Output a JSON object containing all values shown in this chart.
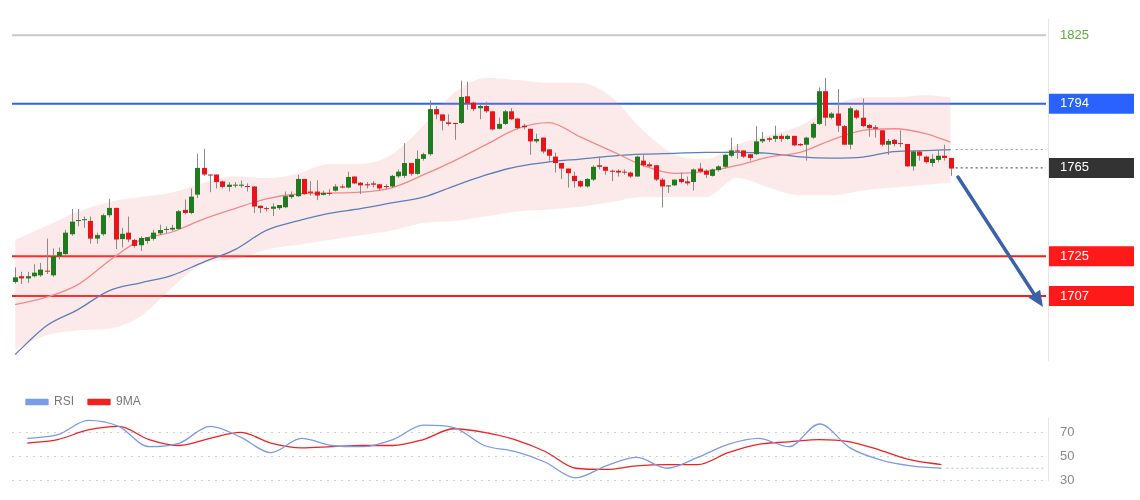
{
  "chart_data": [
    {
      "type": "candlestick",
      "categories": [
        null,
        null,
        null,
        null,
        null,
        null,
        null,
        null,
        null,
        null,
        null,
        null,
        null,
        null,
        null,
        null,
        null,
        null,
        null,
        null,
        null,
        null,
        null,
        null,
        null,
        null,
        null,
        null,
        null,
        null,
        null,
        null,
        null,
        null,
        null,
        null,
        null,
        null,
        null,
        null,
        null,
        null,
        null,
        null,
        null,
        null,
        null,
        null,
        null,
        null,
        null,
        null,
        null,
        null,
        null,
        null,
        null,
        null,
        null,
        null,
        null,
        null,
        null,
        null,
        null,
        null,
        null,
        null,
        null,
        null,
        null,
        null,
        null,
        null,
        null,
        null,
        null,
        null,
        null,
        null,
        null,
        null,
        null,
        null,
        null,
        null,
        null,
        null,
        null,
        null,
        null,
        null,
        null,
        null,
        null,
        null,
        null,
        null,
        null,
        null,
        null,
        null,
        null,
        null,
        null,
        null,
        null,
        null,
        null,
        null,
        null,
        null,
        null,
        null,
        null,
        null,
        null,
        null,
        null,
        null,
        null,
        null,
        null,
        null,
        null,
        null,
        null,
        null,
        null,
        null,
        null,
        null,
        null,
        null,
        null,
        null,
        null,
        null,
        null,
        null,
        null,
        null,
        null,
        null,
        null,
        null,
        null,
        null,
        null,
        null,
        null,
        null,
        null,
        null,
        null,
        null,
        null,
        null,
        null,
        null,
        null,
        null,
        null,
        null,
        null
      ],
      "ohlc": [
        [
          1713.4,
          1720,
          1712.7,
          1715.5
        ],
        [
          1716,
          1718,
          1712.5,
          1715
        ],
        [
          1715,
          1718,
          1713,
          1716
        ],
        [
          1716,
          1721.4,
          1715.4,
          1717.6
        ],
        [
          1716.4,
          1722,
          1715.7,
          1719
        ],
        [
          1718.5,
          1733,
          1717,
          1718.3
        ],
        [
          1716.4,
          1728.6,
          1715.7,
          1725
        ],
        [
          1725,
          1729,
          1723.6,
          1727
        ],
        [
          1726,
          1737,
          1725.7,
          1735.7
        ],
        [
          1735,
          1746.4,
          1734.3,
          1740.7
        ],
        [
          1741,
          1746.4,
          1738.6,
          1741.4
        ],
        [
          1741.5,
          1743,
          1737.9,
          1741.8
        ],
        [
          1741,
          1743,
          1730.7,
          1733
        ],
        [
          1733,
          1735.7,
          1730.7,
          1734.6
        ],
        [
          1735,
          1744.3,
          1734.3,
          1743.6
        ],
        [
          1743.6,
          1751,
          1742.6,
          1746.9
        ],
        [
          1746.9,
          1747,
          1728.3,
          1732.6
        ],
        [
          1732.8,
          1737.9,
          1729,
          1735.2
        ],
        [
          1735.7,
          1743,
          1731.4,
          1732.6
        ],
        [
          1732.4,
          1732.9,
          1728.9,
          1729.7
        ],
        [
          1730,
          1734,
          1727.4,
          1733.3
        ],
        [
          1731.9,
          1733.6,
          1730.7,
          1733.6
        ],
        [
          1732.9,
          1737,
          1732.1,
          1735.7
        ],
        [
          1735.4,
          1739.3,
          1734.6,
          1736.9
        ],
        [
          1737.1,
          1738.6,
          1735.4,
          1737.4
        ],
        [
          1737.1,
          1739.3,
          1736.4,
          1737.9
        ],
        [
          1737.4,
          1746,
          1737.1,
          1745.4
        ],
        [
          1746,
          1750.7,
          1744,
          1744.6
        ],
        [
          1744.6,
          1755.7,
          1744,
          1752
        ],
        [
          1752.9,
          1771.4,
          1751.4,
          1765
        ],
        [
          1765,
          1773.6,
          1761.4,
          1762
        ],
        [
          1762,
          1762,
          1754,
          1761.7
        ],
        [
          1762,
          1762,
          1755.7,
          1758.6
        ],
        [
          1758.9,
          1759.3,
          1755.7,
          1756.4
        ],
        [
          1756.4,
          1758.6,
          1754.3,
          1757.4
        ],
        [
          1757.1,
          1758.6,
          1756,
          1757.4
        ],
        [
          1756.9,
          1759.3,
          1756,
          1757.4
        ],
        [
          1756.8,
          1758,
          1754.3,
          1756.6
        ],
        [
          1756.6,
          1756.6,
          1744.6,
          1747.5
        ],
        [
          1747.9,
          1747.9,
          1744.6,
          1746.8
        ],
        [
          1746.8,
          1747.5,
          1745.3,
          1746.5
        ],
        [
          1746.5,
          1749,
          1743.2,
          1747.5
        ],
        [
          1746.8,
          1748.2,
          1746,
          1748.2
        ],
        [
          1747.2,
          1754.3,
          1746.8,
          1752.2
        ],
        [
          1751.8,
          1754.3,
          1751,
          1752.8
        ],
        [
          1752.2,
          1761.9,
          1751.8,
          1760
        ],
        [
          1760,
          1760,
          1752.8,
          1753.2
        ],
        [
          1754.3,
          1759,
          1752.5,
          1753.7
        ],
        [
          1754.3,
          1759.4,
          1750.4,
          1752.5
        ],
        [
          1752.8,
          1754.7,
          1752.5,
          1753.7
        ],
        [
          1753.7,
          1755.4,
          1752.5,
          1753.3
        ],
        [
          1754.7,
          1757.6,
          1754.3,
          1756.6
        ],
        [
          1756.6,
          1757.6,
          1755.7,
          1756.1
        ],
        [
          1756.1,
          1763.3,
          1755.7,
          1760.9
        ],
        [
          1761.1,
          1761.1,
          1757.6,
          1758
        ],
        [
          1758.3,
          1758.6,
          1753.2,
          1757.1
        ],
        [
          1757.6,
          1758.6,
          1755.7,
          1757.1
        ],
        [
          1758,
          1759,
          1756.1,
          1757.4
        ],
        [
          1757.6,
          1757.6,
          1754.7,
          1755.7
        ],
        [
          1756.8,
          1757.6,
          1755.4,
          1756.6
        ],
        [
          1756.6,
          1761.9,
          1756.1,
          1761.4
        ],
        [
          1761.2,
          1764.3,
          1760.4,
          1763.3
        ],
        [
          1761.4,
          1776.2,
          1760.4,
          1767.2
        ],
        [
          1767.2,
          1767.2,
          1761.4,
          1762.3
        ],
        [
          1762.3,
          1772.9,
          1761.9,
          1769.1
        ],
        [
          1769.1,
          1771.9,
          1768.3,
          1771.2
        ],
        [
          1771.2,
          1795.6,
          1770.5,
          1791.6
        ],
        [
          1791.6,
          1793,
          1787,
          1789.2
        ],
        [
          1789.2,
          1789.2,
          1782,
          1786.3
        ],
        [
          1785.6,
          1789.2,
          1784.1,
          1784.9
        ],
        [
          1785.3,
          1785.3,
          1777.7,
          1784.9
        ],
        [
          1785.3,
          1804.5,
          1784.9,
          1797.1
        ],
        [
          1797.4,
          1804,
          1791.3,
          1794.2
        ],
        [
          1794.5,
          1794.9,
          1790.6,
          1791.6
        ],
        [
          1792,
          1793.5,
          1787,
          1793
        ],
        [
          1793,
          1794.9,
          1789.9,
          1790.6
        ],
        [
          1790.6,
          1790.6,
          1782,
          1782.4
        ],
        [
          1782.7,
          1787.7,
          1782.4,
          1784.9
        ],
        [
          1784.9,
          1791.3,
          1784.4,
          1790.6
        ],
        [
          1790.6,
          1792,
          1786.7,
          1787
        ],
        [
          1787.3,
          1787.7,
          1782.4,
          1783
        ],
        [
          1784.1,
          1784.9,
          1782.4,
          1783.4
        ],
        [
          1782.7,
          1782.7,
          1770.9,
          1777
        ],
        [
          1777,
          1780.5,
          1776.2,
          1778.1
        ],
        [
          1778.7,
          1778.7,
          1771.5,
          1772.4
        ],
        [
          1773.4,
          1773.4,
          1768.3,
          1770.5
        ],
        [
          1770.1,
          1771.9,
          1762.9,
          1767.2
        ],
        [
          1767.2,
          1767.2,
          1760,
          1764.7
        ],
        [
          1764.7,
          1764.7,
          1756.1,
          1762.6
        ],
        [
          1761.4,
          1763.3,
          1756.1,
          1759
        ],
        [
          1759,
          1759.4,
          1756.1,
          1756.6
        ],
        [
          1756.6,
          1760.4,
          1756.1,
          1760
        ],
        [
          1759.7,
          1766.2,
          1759,
          1765.5
        ],
        [
          1766.2,
          1770.1,
          1764.3,
          1765.5
        ],
        [
          1765.5,
          1765.5,
          1761.9,
          1763.7
        ],
        [
          1763.7,
          1764.3,
          1759,
          1763.3
        ],
        [
          1763.7,
          1764.3,
          1761.1,
          1762.9
        ],
        [
          1763.3,
          1764.3,
          1761.9,
          1762.9
        ],
        [
          1762.9,
          1763.3,
          1760.4,
          1761.1
        ],
        [
          1761.1,
          1770.5,
          1760.9,
          1770.1
        ],
        [
          1768.3,
          1770.9,
          1765.5,
          1766.2
        ],
        [
          1766.6,
          1767.6,
          1765.5,
          1765.7
        ],
        [
          1766.2,
          1766.2,
          1759,
          1759.7
        ],
        [
          1759.7,
          1760.4,
          1747.1,
          1756.6
        ],
        [
          1756.6,
          1757.1,
          1753.7,
          1757.1
        ],
        [
          1757.1,
          1759.7,
          1756.8,
          1759.7
        ],
        [
          1760,
          1762.9,
          1758,
          1758.6
        ],
        [
          1758.9,
          1761.1,
          1757.1,
          1758
        ],
        [
          1758.6,
          1764.7,
          1754.7,
          1764.3
        ],
        [
          1764.7,
          1767.2,
          1762.6,
          1763.3
        ],
        [
          1763.7,
          1764.3,
          1760.4,
          1761.9
        ],
        [
          1761.4,
          1764.7,
          1761.1,
          1764.3
        ],
        [
          1764,
          1766.2,
          1763.3,
          1765.7
        ],
        [
          1765.5,
          1771.2,
          1764.7,
          1770.9
        ],
        [
          1770.5,
          1778.7,
          1769.8,
          1772.9
        ],
        [
          1772.9,
          1775.8,
          1769.1,
          1772.4
        ],
        [
          1772.9,
          1772.9,
          1769.5,
          1770.1
        ],
        [
          1771.2,
          1771.2,
          1768.3,
          1769.5
        ],
        [
          1771.2,
          1783.9,
          1770.9,
          1777
        ],
        [
          1777,
          1781.3,
          1776.2,
          1778.1
        ],
        [
          1778.4,
          1779.1,
          1776.7,
          1777.7
        ],
        [
          1778.1,
          1784.1,
          1776.7,
          1779.5
        ],
        [
          1779.5,
          1780.5,
          1776.7,
          1778.1
        ],
        [
          1778.1,
          1780.1,
          1777.7,
          1779.5
        ],
        [
          1779.5,
          1779.5,
          1774.8,
          1775.2
        ],
        [
          1775.8,
          1776.2,
          1774.8,
          1775.2
        ],
        [
          1775.5,
          1779.1,
          1768.3,
          1778.7
        ],
        [
          1778.7,
          1785.6,
          1778.1,
          1784.9
        ],
        [
          1784.9,
          1801.4,
          1784.4,
          1799.7
        ],
        [
          1799.7,
          1805.7,
          1783.9,
          1787.7
        ],
        [
          1787.7,
          1790.2,
          1787,
          1789.6
        ],
        [
          1789.6,
          1800.7,
          1781.3,
          1784.1
        ],
        [
          1783.9,
          1784.4,
          1775.2,
          1775.5
        ],
        [
          1775.5,
          1792.8,
          1773.4,
          1792
        ],
        [
          1791,
          1791.6,
          1787,
          1787.7
        ],
        [
          1787.7,
          1796.4,
          1783.4,
          1783.9
        ],
        [
          1784.4,
          1784.9,
          1779.1,
          1783
        ],
        [
          1783.4,
          1784.4,
          1778.7,
          1782.7
        ],
        [
          1782,
          1782,
          1774.8,
          1775.5
        ],
        [
          1775.5,
          1778.1,
          1770.9,
          1777.2
        ],
        [
          1777.7,
          1778.1,
          1774.8,
          1775.8
        ],
        [
          1776.2,
          1782,
          1774.4,
          1775.8
        ],
        [
          1775.8,
          1775.8,
          1765.5,
          1765.7
        ],
        [
          1765.7,
          1772.9,
          1763.7,
          1772.4
        ],
        [
          1772.4,
          1772.9,
          1768.3,
          1770.5
        ],
        [
          1770.1,
          1770.5,
          1766.9,
          1767.6
        ],
        [
          1767.2,
          1771.2,
          1765.5,
          1769.1
        ],
        [
          1768.6,
          1772.9,
          1767.6,
          1770.5
        ],
        [
          1770.5,
          1775.5,
          1768.3,
          1769.5
        ],
        [
          1769.5,
          1769.5,
          1761.4,
          1764.7
        ],
        null,
        null,
        null,
        null,
        null,
        null,
        null,
        null,
        null,
        null,
        null,
        null,
        null,
        null,
        null
      ],
      "colors": [
        "#1e7b1e",
        "#e8141a",
        "#1e7b1e",
        "#1e7b1e",
        "#1e7b1e",
        "#e8141a",
        "#1e7b1e",
        "#1e7b1e",
        "#1e7b1e",
        "#1e7b1e",
        "#1e7b1e",
        "#1e7b1e",
        "#e8141a",
        "#1e7b1e",
        "#1e7b1e",
        "#1e7b1e",
        "#e8141a",
        "#1e7b1e",
        "#e8141a",
        "#e8141a",
        "#1e7b1e",
        "#1e7b1e",
        "#1e7b1e",
        "#1e7b1e",
        "#1e7b1e",
        "#1e7b1e",
        "#1e7b1e",
        "#e8141a",
        "#1e7b1e",
        "#1e7b1e",
        "#e8141a",
        "#e8141a",
        "#e8141a",
        "#e8141a",
        "#1e7b1e",
        "#1e7b1e",
        "#1e7b1e",
        "#e8141a",
        "#e8141a",
        "#e8141a",
        "#e8141a",
        "#1e7b1e",
        "#1e7b1e",
        "#1e7b1e",
        "#1e7b1e",
        "#1e7b1e",
        "#e8141a",
        "#e8141a",
        "#e8141a",
        "#1e7b1e",
        "#e8141a",
        "#1e7b1e",
        "#e8141a",
        "#1e7b1e",
        "#e8141a",
        "#e8141a",
        "#e8141a",
        "#e8141a",
        "#e8141a",
        "#e8141a",
        "#1e7b1e",
        "#1e7b1e",
        "#1e7b1e",
        "#e8141a",
        "#1e7b1e",
        "#1e7b1e",
        "#1e7b1e",
        "#e8141a",
        "#e8141a",
        "#e8141a",
        "#e8141a",
        "#1e7b1e",
        "#e8141a",
        "#e8141a",
        "#1e7b1e",
        "#e8141a",
        "#e8141a",
        "#1e7b1e",
        "#1e7b1e",
        "#e8141a",
        "#e8141a",
        "#e8141a",
        "#e8141a",
        "#1e7b1e",
        "#e8141a",
        "#e8141a",
        "#e8141a",
        "#e8141a",
        "#e8141a",
        "#e8141a",
        "#e8141a",
        "#1e7b1e",
        "#1e7b1e",
        "#e8141a",
        "#e8141a",
        "#e8141a",
        "#e8141a",
        "#e8141a",
        "#e8141a",
        "#1e7b1e",
        "#e8141a",
        "#e8141a",
        "#e8141a",
        "#e8141a",
        "#1e7b1e",
        "#1e7b1e",
        "#e8141a",
        "#e8141a",
        "#1e7b1e",
        "#e8141a",
        "#e8141a",
        "#1e7b1e",
        "#1e7b1e",
        "#1e7b1e",
        "#1e7b1e",
        "#e8141a",
        "#e8141a",
        "#e8141a",
        "#1e7b1e",
        "#1e7b1e",
        "#e8141a",
        "#1e7b1e",
        "#e8141a",
        "#1e7b1e",
        "#e8141a",
        "#e8141a",
        "#1e7b1e",
        "#1e7b1e",
        "#1e7b1e",
        "#e8141a",
        "#1e7b1e",
        "#e8141a",
        "#e8141a",
        "#1e7b1e",
        "#e8141a",
        "#e8141a",
        "#e8141a",
        "#e8141a",
        "#e8141a",
        "#1e7b1e",
        "#e8141a",
        "#e8141a",
        "#e8141a",
        "#1e7b1e",
        "#e8141a",
        "#e8141a",
        "#1e7b1e",
        "#1e7b1e",
        "#e8141a",
        "#e8141a",
        null,
        null,
        null,
        null,
        null,
        null,
        null,
        null,
        null,
        null,
        null,
        null,
        null,
        null,
        null
      ],
      "series": [
        {
          "type": "line",
          "color": "#f08a8a",
          "values": [
            1703.1,
            null,
            null,
            null,
            null,
            1706.5,
            null,
            null,
            null,
            null,
            1712.2,
            null,
            null,
            null,
            null,
            1723,
            null,
            null,
            null,
            null,
            1732.4,
            null,
            null,
            null,
            null,
            1736,
            null,
            null,
            null,
            null,
            1741.8,
            null,
            null,
            null,
            null,
            1746.6,
            null,
            null,
            null,
            null,
            1751,
            null,
            null,
            null,
            null,
            1753.2,
            null,
            null,
            null,
            null,
            1753.6,
            null,
            null,
            null,
            null,
            1754,
            null,
            null,
            null,
            null,
            1756,
            null,
            null,
            null,
            null,
            1761.8,
            null,
            null,
            null,
            null,
            1768.3,
            null,
            null,
            null,
            null,
            1775.5,
            null,
            null,
            null,
            null,
            1782.8,
            null,
            null,
            null,
            null,
            1785.5,
            null,
            null,
            null,
            null,
            1779,
            null,
            null,
            null,
            null,
            1772.6,
            null,
            null,
            null,
            null,
            1766.1,
            null,
            null,
            null,
            null,
            1762.5,
            null,
            null,
            null,
            null,
            1763.4,
            null,
            null,
            null,
            null,
            1766.1,
            null,
            null,
            null,
            null,
            1769.9,
            null,
            null,
            null,
            null,
            1772,
            null,
            null,
            null,
            null,
            1777.6,
            null,
            null,
            null,
            null,
            1782,
            null,
            null,
            null,
            null,
            1782.7,
            null,
            null,
            null,
            null,
            1780.5,
            null,
            null,
            null,
            1776.6,
            null,
            null,
            null,
            null,
            null,
            null,
            null,
            null,
            null,
            null,
            null,
            null,
            null,
            null,
            null
          ],
          "upper": [
            1732.4,
            null,
            null,
            null,
            null,
            1738.8,
            null,
            null,
            null,
            null,
            1745.3,
            null,
            null,
            null,
            null,
            1749.6,
            null,
            null,
            null,
            null,
            1751.8,
            null,
            null,
            null,
            null,
            1753.9,
            null,
            null,
            null,
            null,
            1758.2,
            null,
            null,
            null,
            null,
            1761.2,
            null,
            null,
            null,
            null,
            1760.4,
            null,
            null,
            null,
            null,
            1762.5,
            null,
            null,
            null,
            null,
            1766.8,
            null,
            null,
            null,
            null,
            1766.8,
            null,
            null,
            null,
            null,
            1771.2,
            null,
            null,
            null,
            null,
            1784.1,
            null,
            null,
            null,
            null,
            1799.2,
            null,
            null,
            null,
            null,
            1805.7,
            null,
            null,
            null,
            null,
            1804.8,
            null,
            null,
            null,
            null,
            1803.5,
            null,
            null,
            null,
            null,
            1803.5,
            null,
            null,
            null,
            null,
            1797,
            null,
            null,
            null,
            null,
            1781.9,
            null,
            null,
            null,
            null,
            1771.2,
            null,
            null,
            null,
            null,
            1769,
            null,
            null,
            null,
            null,
            1775.5,
            null,
            null,
            null,
            null,
            1779.8,
            null,
            null,
            null,
            null,
            1784.1,
            null,
            null,
            null,
            null,
            1792.7,
            null,
            null,
            null,
            null,
            1797,
            null,
            null,
            null,
            null,
            1797,
            null,
            null,
            null,
            null,
            1797.9,
            null,
            null,
            null,
            1797,
            null,
            null,
            null,
            null,
            null,
            null,
            null,
            null,
            null,
            null,
            null,
            null,
            null,
            null,
            null
          ],
          "lower": [
            1682.8,
            null,
            null,
            null,
            null,
            1689.3,
            null,
            null,
            null,
            null,
            1691.4,
            null,
            null,
            null,
            null,
            1692.3,
            null,
            null,
            null,
            null,
            1697.9,
            null,
            null,
            null,
            null,
            1710.8,
            null,
            null,
            null,
            null,
            1721.6,
            null,
            null,
            null,
            null,
            1723.7,
            null,
            null,
            null,
            null,
            1728,
            null,
            null,
            null,
            null,
            1730.2,
            null,
            null,
            null,
            null,
            1732.4,
            null,
            null,
            null,
            null,
            1734.5,
            null,
            null,
            null,
            null,
            1736.7,
            null,
            null,
            null,
            null,
            1740.1,
            null,
            null,
            null,
            null,
            1741,
            null,
            null,
            null,
            null,
            1743.1,
            null,
            null,
            null,
            null,
            1745.3,
            null,
            null,
            null,
            null,
            1746.2,
            null,
            null,
            null,
            null,
            1747.4,
            null,
            null,
            null,
            null,
            1749.6,
            null,
            null,
            null,
            null,
            1751.8,
            null,
            null,
            null,
            null,
            1751.8,
            null,
            null,
            null,
            null,
            1751.8,
            null,
            null,
            null,
            null,
            1760.4,
            null,
            null,
            null,
            null,
            1756.1,
            null,
            null,
            null,
            null,
            1752.6,
            null,
            null,
            null,
            null,
            1752.6,
            null,
            null,
            null,
            null,
            1754.8,
            null,
            null,
            null,
            null,
            1756.1,
            null,
            null,
            null,
            null,
            1757.4,
            null,
            null,
            null,
            1758.2,
            null,
            null,
            null,
            null,
            null,
            null,
            null,
            null,
            null,
            null,
            null,
            null,
            null,
            null,
            null
          ]
        },
        {
          "type": "line",
          "color": "#5b7fb8",
          "values": [
            1680.6,
            null,
            null,
            null,
            null,
            1693.6,
            null,
            null,
            null,
            null,
            1700.9,
            null,
            null,
            null,
            null,
            1709.5,
            null,
            null,
            null,
            null,
            1713,
            null,
            null,
            null,
            null,
            1716.4,
            null,
            null,
            null,
            null,
            1722.4,
            null,
            null,
            null,
            null,
            1728,
            null,
            null,
            null,
            null,
            1736.7,
            null,
            null,
            null,
            null,
            1741,
            null,
            null,
            null,
            null,
            1744.4,
            null,
            null,
            null,
            null,
            1746.6,
            null,
            null,
            null,
            null,
            1749.2,
            null,
            null,
            null,
            null,
            1751.8,
            null,
            null,
            null,
            null,
            1756.9,
            null,
            null,
            null,
            null,
            1761.8,
            null,
            null,
            null,
            null,
            1765.6,
            null,
            null,
            null,
            null,
            1767.7,
            null,
            null,
            null,
            null,
            1769,
            null,
            null,
            null,
            null,
            1770.3,
            null,
            null,
            null,
            null,
            1771.2,
            null,
            null,
            null,
            null,
            1771.6,
            null,
            null,
            null,
            null,
            1772,
            null,
            null,
            null,
            null,
            1772,
            null,
            null,
            null,
            null,
            1771.6,
            null,
            null,
            null,
            null,
            1770,
            null,
            null,
            null,
            null,
            1769.4,
            null,
            null,
            null,
            null,
            1769.9,
            null,
            null,
            null,
            null,
            1772.4,
            null,
            null,
            null,
            null,
            1772.8,
            null,
            null,
            null,
            1773.3,
            null,
            null,
            null,
            null,
            null,
            null,
            null,
            null,
            null,
            null,
            null,
            null,
            null,
            null,
            null
          ]
        }
      ],
      "ylim": [
        1678,
        1832
      ],
      "yticks": [
        1707,
        1725,
        1765,
        1794
      ],
      "legend": false,
      "marker": "none",
      "tick_labels": "y",
      "ref_lines": [
        {
          "axis": "y",
          "value": 1825,
          "label": "1825",
          "color": "#c8c8c8"
        },
        {
          "axis": "y",
          "value": 1794,
          "color": "#2962ff"
        },
        {
          "axis": "y",
          "value": 1773.3,
          "color": "#9a9a9a",
          "line_style": "dotted"
        },
        {
          "axis": "y",
          "value": 1765,
          "color": "#333333",
          "line_style": "dotted"
        },
        {
          "axis": "y",
          "value": 1725,
          "color": "#ff1a1a"
        },
        {
          "axis": "y",
          "value": 1707,
          "color": "#ff1a1a"
        }
      ]
    },
    {
      "type": "line",
      "categories": [
        null,
        null,
        null,
        null,
        null,
        null,
        null,
        null,
        null,
        null,
        null,
        null,
        null,
        null,
        null,
        null,
        null,
        null,
        null,
        null,
        null,
        null,
        null,
        null,
        null,
        null,
        null,
        null,
        null,
        null,
        null,
        null,
        null,
        null
      ],
      "series": [
        {
          "name": "RSI",
          "color": "#7b9be8",
          "values": [
            65,
            68,
            80,
            75,
            58,
            61,
            75,
            66,
            53,
            65,
            59,
            58,
            64,
            76,
            74,
            59,
            54,
            45,
            32,
            42,
            49,
            40,
            49,
            60,
            65,
            58,
            77,
            57,
            47,
            42,
            40,
            null,
            null,
            null
          ]
        },
        {
          "name": "9MA",
          "color": "#ee2222",
          "values": [
            61,
            64,
            72,
            75,
            64,
            59,
            65,
            70,
            61,
            57,
            58,
            59,
            59,
            64,
            73,
            70,
            64,
            54,
            40,
            39,
            42,
            43,
            43,
            53,
            60,
            62,
            64,
            62,
            55,
            47,
            43,
            null,
            null,
            null
          ]
        }
      ],
      "ylim": [
        30,
        82
      ],
      "yticks": [
        30,
        50,
        70
      ],
      "grid": "y",
      "legend": "top left",
      "marker": "none",
      "tick_labels": "y",
      "ref_lines": [
        {
          "axis": "y",
          "value": 40,
          "color": "#a8bcec",
          "line_style": "dotted"
        }
      ]
    }
  ]
}
